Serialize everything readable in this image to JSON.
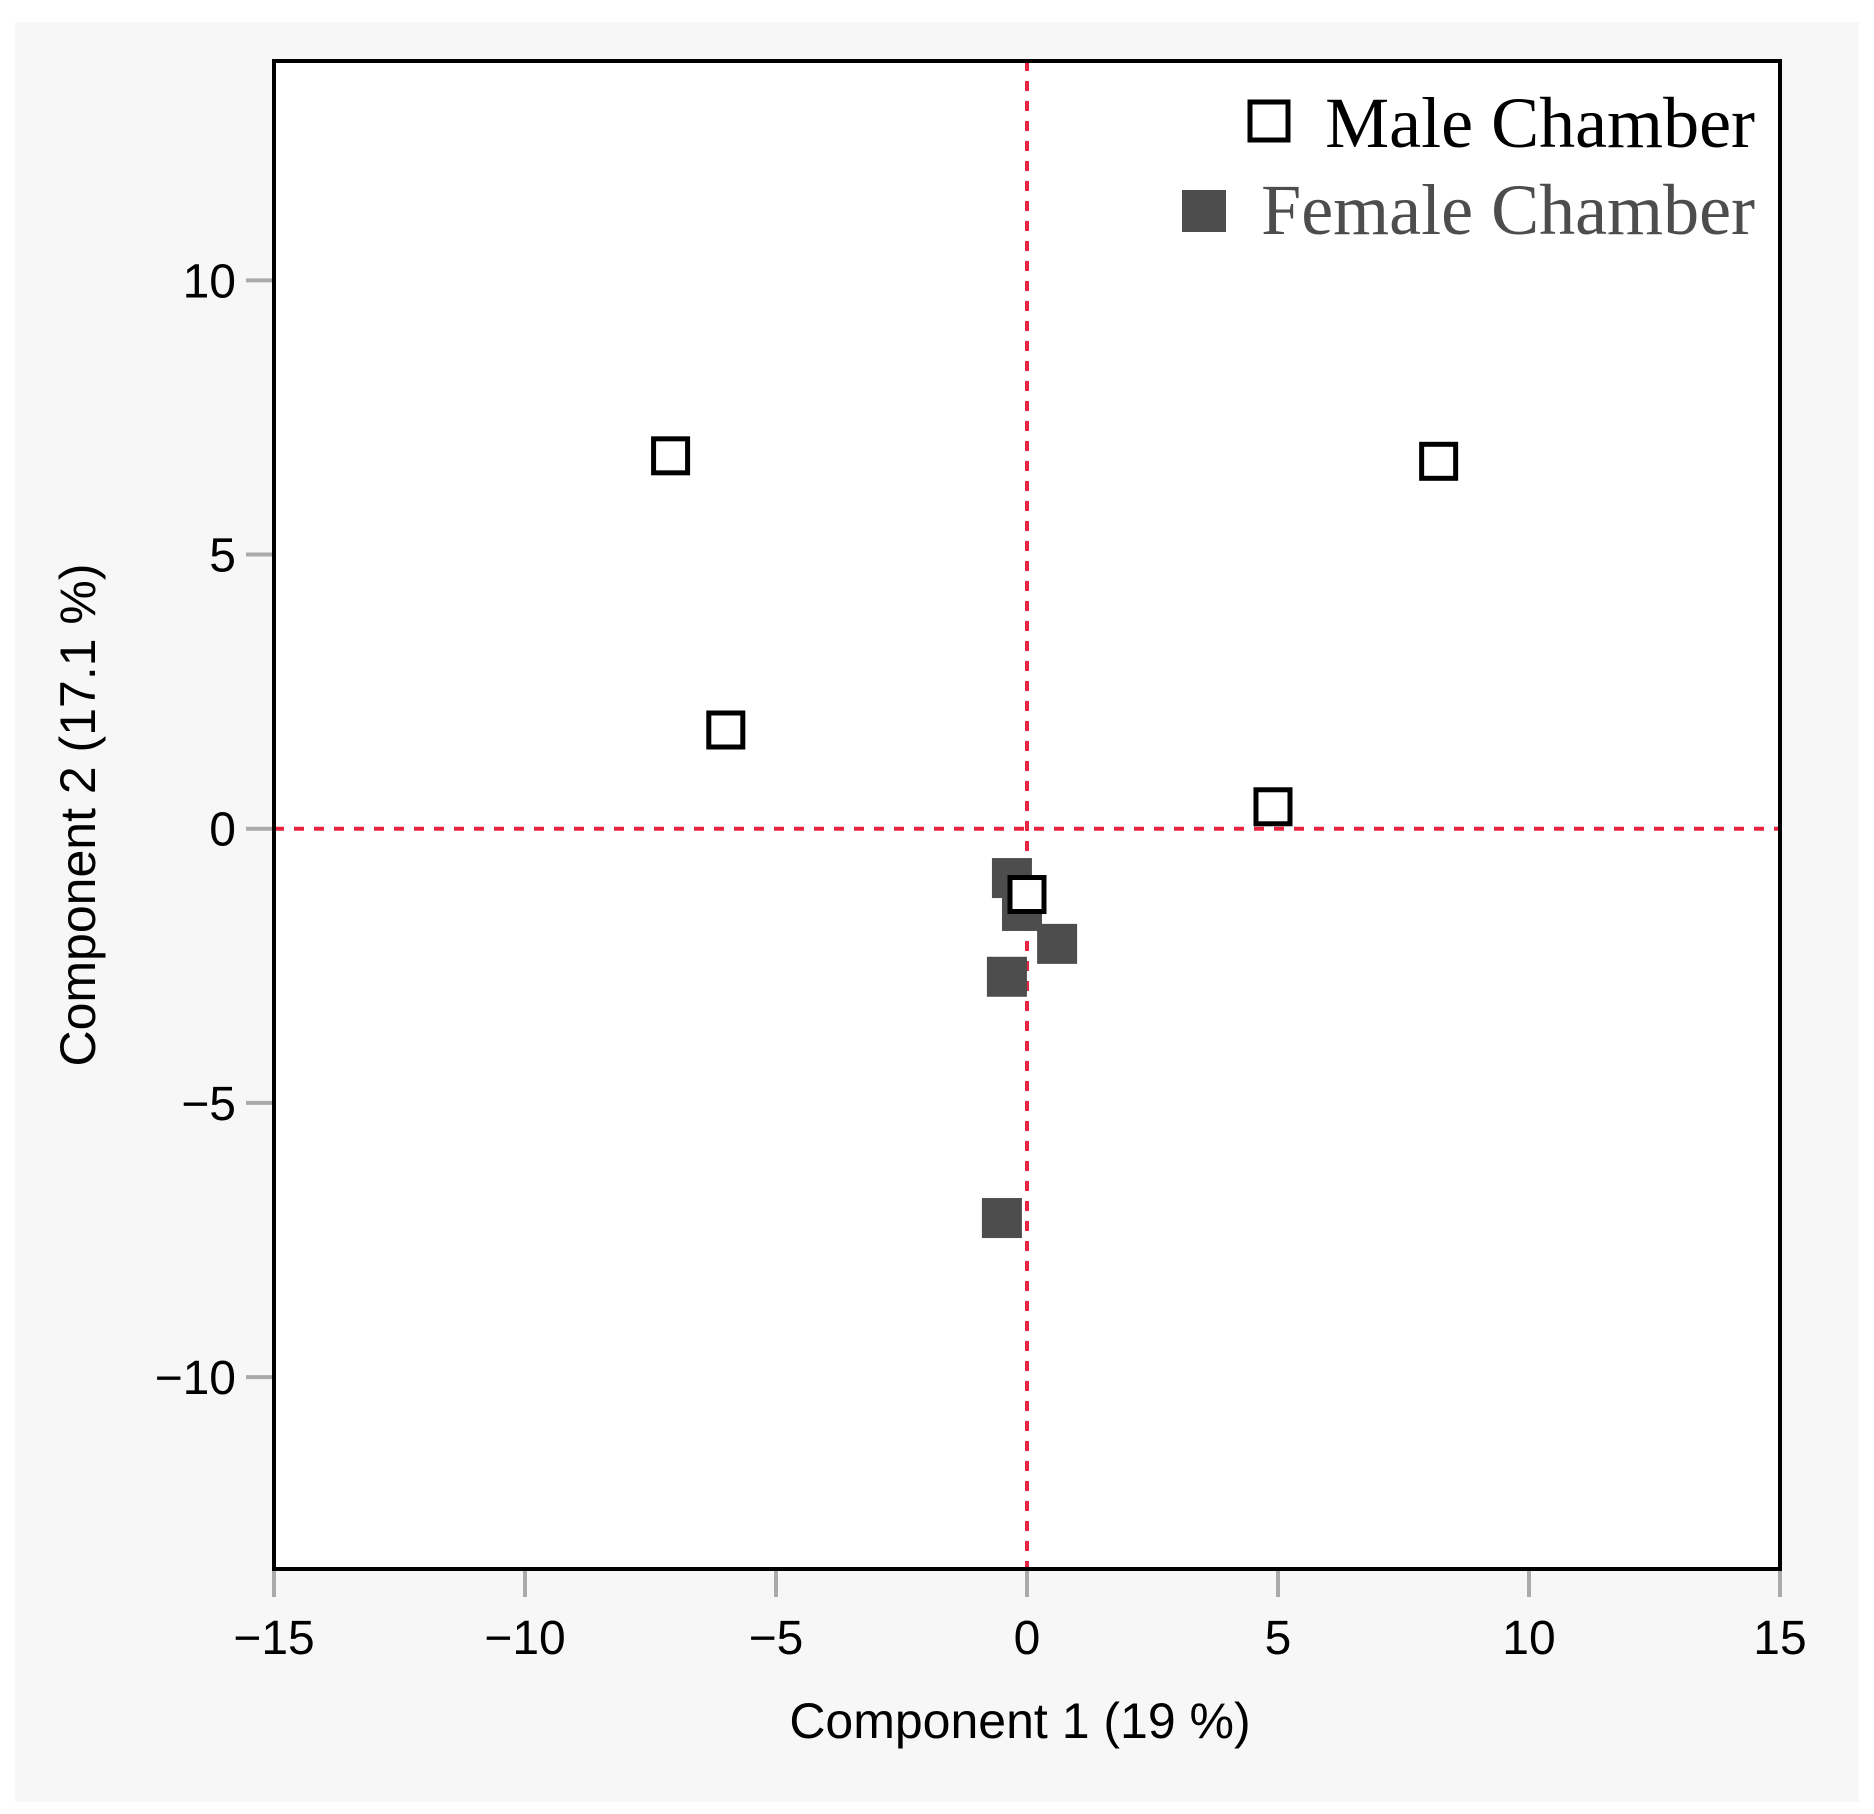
{
  "chart_data": {
    "type": "scatter",
    "title": "",
    "xlabel": "Component 1  (19 %)",
    "ylabel": "Component 2  (17.1 %)",
    "xlim": [
      -15,
      15
    ],
    "ylim": [
      -13.5,
      14
    ],
    "xticks": [
      -15,
      -10,
      -5,
      0,
      5,
      10,
      15
    ],
    "yticks": [
      -10,
      -5,
      0,
      5,
      10
    ],
    "xtick_labels": [
      "−15",
      "−10",
      "−5",
      "0",
      "5",
      "10",
      "15"
    ],
    "ytick_labels": [
      "−10",
      "−5",
      "0",
      "5",
      "10"
    ],
    "reference_lines": {
      "x": 0,
      "y": 0,
      "style": "dashed",
      "color": "#e8233f"
    },
    "grid": false,
    "legend_position": "top-right",
    "series": [
      {
        "name": "Male Chamber",
        "marker": "open-square",
        "color": "#000000",
        "points": [
          {
            "x": -7.1,
            "y": 6.8
          },
          {
            "x": -6.0,
            "y": 1.8
          },
          {
            "x": 8.2,
            "y": 6.7
          },
          {
            "x": 4.9,
            "y": 0.4
          },
          {
            "x": 0.0,
            "y": -1.2
          }
        ]
      },
      {
        "name": "Female Chamber",
        "marker": "filled-square",
        "color": "#4d4d4d",
        "points": [
          {
            "x": -0.3,
            "y": -0.9
          },
          {
            "x": -0.1,
            "y": -1.5
          },
          {
            "x": 0.6,
            "y": -2.1
          },
          {
            "x": -0.4,
            "y": -2.7
          },
          {
            "x": -0.5,
            "y": -7.1
          }
        ]
      }
    ]
  }
}
